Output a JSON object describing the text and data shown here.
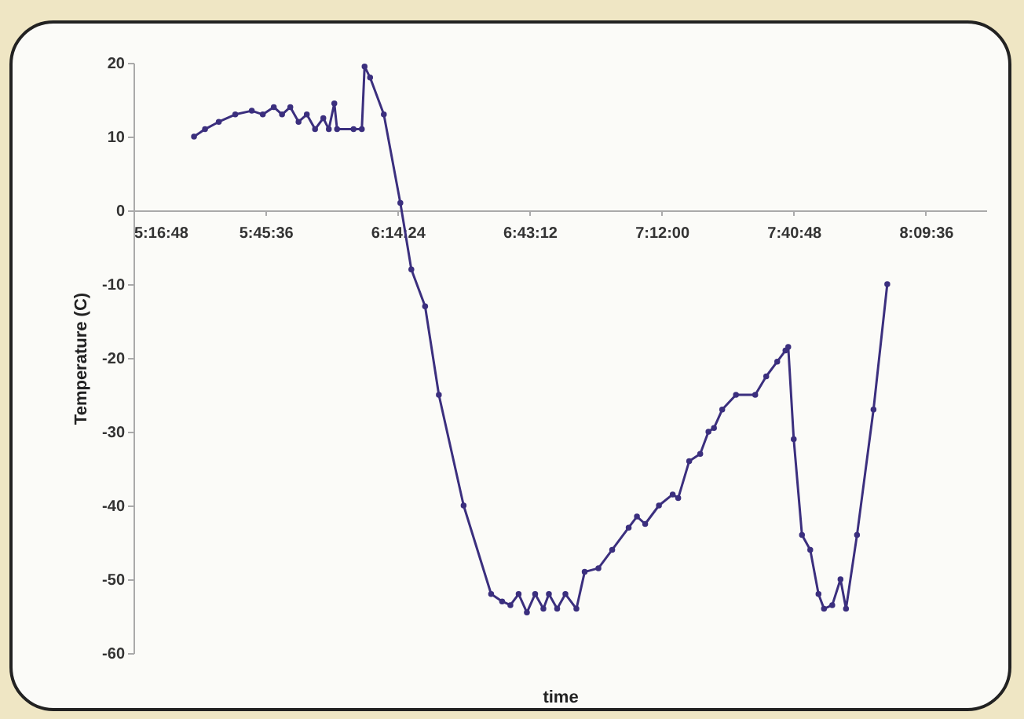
{
  "chart_data": {
    "type": "line",
    "xlabel": "time",
    "ylabel": "Temperature (C)",
    "xlim": [
      5.28,
      8.38
    ],
    "xticks": [
      {
        "value": 5.28,
        "label": "5:16:48"
      },
      {
        "value": 5.76,
        "label": "5:45:36"
      },
      {
        "value": 6.24,
        "label": "6:14:24"
      },
      {
        "value": 6.72,
        "label": "6:43:12"
      },
      {
        "value": 7.2,
        "label": "7:12:00"
      },
      {
        "value": 7.68,
        "label": "7:40:48"
      },
      {
        "value": 8.16,
        "label": "8:09:36"
      }
    ],
    "ylim": [
      -60,
      20
    ],
    "yticks": [
      -60,
      -50,
      -40,
      -30,
      -20,
      -10,
      0,
      10,
      20
    ],
    "grid": false,
    "marker": "circle",
    "line_style": "solid",
    "series": [
      {
        "color": "#3b2f7e",
        "x": [
          5.5,
          5.54,
          5.59,
          5.65,
          5.71,
          5.75,
          5.79,
          5.82,
          5.85,
          5.88,
          5.91,
          5.94,
          5.97,
          5.99,
          6.01,
          6.02,
          6.08,
          6.11,
          6.12,
          6.14,
          6.19,
          6.25,
          6.29,
          6.34,
          6.39,
          6.48,
          6.58,
          6.62,
          6.65,
          6.68,
          6.71,
          6.74,
          6.77,
          6.79,
          6.82,
          6.85,
          6.89,
          6.92,
          6.97,
          7.02,
          7.08,
          7.11,
          7.14,
          7.19,
          7.24,
          7.26,
          7.3,
          7.34,
          7.37,
          7.39,
          7.42,
          7.47,
          7.54,
          7.58,
          7.62,
          7.65,
          7.66,
          7.68,
          7.71,
          7.74,
          7.77,
          7.79,
          7.82,
          7.85,
          7.87,
          7.91,
          7.97,
          8.02
        ],
        "values": [
          10,
          11,
          12,
          13,
          13.5,
          13,
          14,
          13,
          14,
          12,
          13,
          11,
          12.5,
          11,
          14.5,
          11,
          11,
          11,
          19.5,
          18,
          13,
          1,
          -8,
          -13,
          -25,
          -40,
          -52,
          -53,
          -53.5,
          -52,
          -54.5,
          -52,
          -54,
          -52,
          -54,
          -52,
          -54,
          -49,
          -48.5,
          -46,
          -43,
          -41.5,
          -42.5,
          -40,
          -38.5,
          -39,
          -34,
          -33,
          -30,
          -29.5,
          -27,
          -25,
          -25,
          -22.5,
          -20.5,
          -19,
          -18.5,
          -31,
          -44,
          -46,
          -52,
          -54,
          -53.5,
          -50,
          -54,
          -44,
          -27,
          -10
        ]
      }
    ]
  }
}
